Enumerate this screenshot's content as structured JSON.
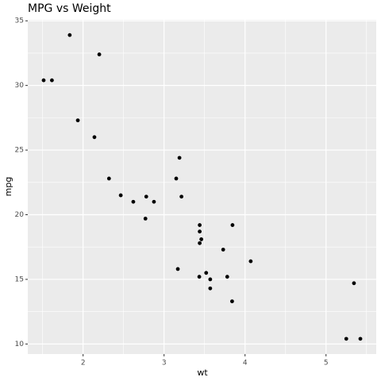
{
  "chart_data": {
    "type": "scatter",
    "title": "MPG vs Weight",
    "x_label": "wt",
    "y_label": "mpg",
    "x": [
      2.62,
      2.875,
      2.32,
      3.215,
      3.44,
      3.46,
      3.57,
      3.19,
      3.15,
      3.44,
      3.44,
      4.07,
      3.73,
      3.78,
      5.25,
      5.424,
      5.345,
      2.2,
      1.615,
      1.835,
      2.465,
      3.52,
      3.435,
      3.84,
      3.845,
      1.935,
      2.14,
      1.513,
      3.17,
      2.77,
      3.57,
      2.78
    ],
    "values": [
      21.0,
      21.0,
      22.8,
      21.4,
      18.7,
      18.1,
      14.3,
      24.4,
      22.8,
      19.2,
      17.8,
      16.4,
      17.3,
      15.2,
      10.4,
      10.4,
      14.7,
      32.4,
      30.4,
      33.9,
      21.5,
      15.5,
      15.2,
      13.3,
      19.2,
      27.3,
      26.0,
      30.4,
      15.8,
      19.7,
      15.0,
      21.4
    ],
    "color": "#000000",
    "xlim": [
      1.317,
      5.62
    ],
    "ylim": [
      9.225,
      35.075
    ],
    "xticks": [
      2,
      3,
      4,
      5
    ],
    "yticks": [
      10,
      15,
      20,
      25,
      30,
      35
    ],
    "x_minor_grid": [
      1.5,
      2.5,
      3.5,
      4.5,
      5.5
    ],
    "y_minor_grid": [
      12.5,
      17.5,
      22.5,
      27.5,
      32.5
    ],
    "grid": true
  }
}
